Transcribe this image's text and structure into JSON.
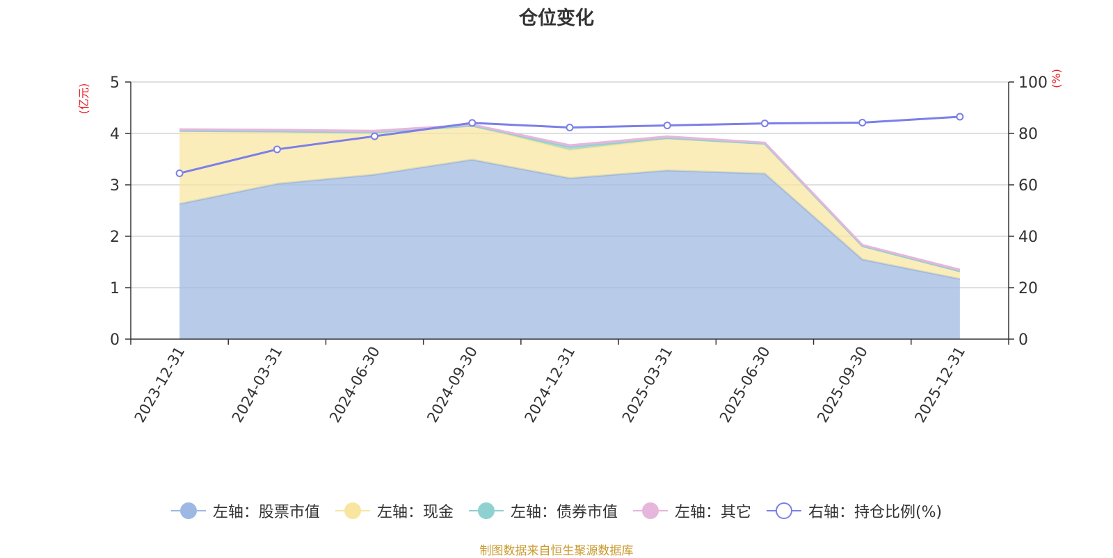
{
  "title": "仓位变化",
  "source": "制图数据来自恒生聚源数据库",
  "chart_data": {
    "type": "area",
    "categories": [
      "2023-12-31",
      "2024-03-31",
      "2024-06-30",
      "2024-09-30",
      "2024-12-31",
      "2025-03-31",
      "2025-06-30",
      "2025-09-30",
      "2025-12-31"
    ],
    "y_left": {
      "label": "(亿元)",
      "ylim": [
        0,
        5
      ],
      "ticks": [
        0,
        1,
        2,
        3,
        4,
        5
      ]
    },
    "y_right": {
      "label": "(%)",
      "ylim": [
        0,
        100
      ],
      "ticks": [
        0,
        20,
        40,
        60,
        80,
        100
      ]
    },
    "stacked": true,
    "grid": true,
    "legend_position": "bottom",
    "series": [
      {
        "name": "左轴：股票市值",
        "axis": "left",
        "type": "area",
        "color": "#9db8e2",
        "values": [
          2.63,
          3.02,
          3.2,
          3.49,
          3.13,
          3.28,
          3.22,
          1.55,
          1.17
        ]
      },
      {
        "name": "左轴：现金",
        "axis": "left",
        "type": "area",
        "color": "#f8e6a0",
        "values": [
          1.42,
          1.02,
          0.82,
          0.66,
          0.55,
          0.62,
          0.58,
          0.26,
          0.15
        ]
      },
      {
        "name": "左轴：债券市值",
        "axis": "left",
        "type": "area",
        "color": "#8fd1d1",
        "values": [
          0,
          0,
          0,
          0,
          0.06,
          0.01,
          0,
          0,
          0
        ]
      },
      {
        "name": "左轴：其它",
        "axis": "left",
        "type": "area",
        "color": "#e6b6dc",
        "values": [
          0.03,
          0.03,
          0.03,
          0.02,
          0.03,
          0.03,
          0.02,
          0.02,
          0.03
        ]
      },
      {
        "name": "右轴：持仓比例(%)",
        "axis": "right",
        "type": "line",
        "color": "#7b7fe8",
        "values": [
          64.5,
          73.8,
          78.9,
          84.1,
          82.3,
          83.1,
          83.9,
          84.2,
          86.5
        ]
      }
    ]
  }
}
